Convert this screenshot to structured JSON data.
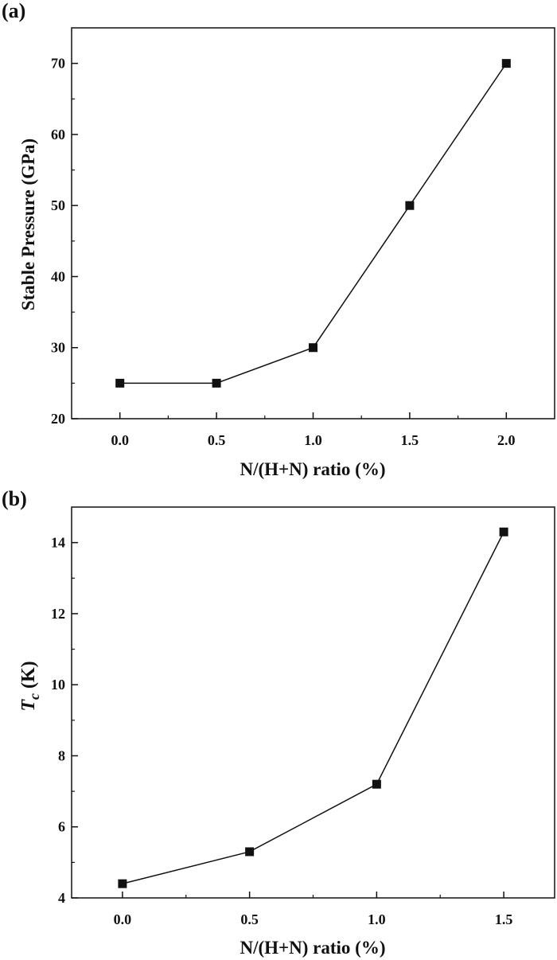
{
  "chart_data": [
    {
      "panel_label": "(a)",
      "type": "line",
      "x": [
        0.0,
        0.5,
        1.0,
        1.5,
        2.0
      ],
      "series": [
        {
          "values": [
            25,
            25,
            30,
            50,
            70
          ]
        }
      ],
      "xlabel": "N/(H+N) ratio (%)",
      "ylabel": "Stable Pressure (GPa)",
      "xlim": [
        -0.25,
        2.25
      ],
      "ylim": [
        20,
        75
      ],
      "x_ticks": [
        "0.0",
        "0.5",
        "1.0",
        "1.5",
        "2.0"
      ],
      "y_ticks": [
        "20",
        "30",
        "40",
        "50",
        "60",
        "70"
      ],
      "marker": "square",
      "grid": false,
      "color": "#111111"
    },
    {
      "panel_label": "(b)",
      "type": "line",
      "x": [
        0.0,
        0.5,
        1.0,
        1.5
      ],
      "series": [
        {
          "values": [
            4.4,
            5.3,
            7.2,
            14.3
          ]
        }
      ],
      "xlabel": "N/(H+N) ratio (%)",
      "ylabel_main": "T",
      "ylabel_sub": "c",
      "ylabel_unit": " (K)",
      "xlim": [
        -0.2,
        1.7
      ],
      "ylim": [
        4,
        15
      ],
      "x_ticks": [
        "0.0",
        "0.5",
        "1.0",
        "1.5"
      ],
      "y_ticks": [
        "4",
        "6",
        "8",
        "10",
        "12",
        "14"
      ],
      "marker": "square",
      "grid": false,
      "color": "#111111"
    }
  ]
}
